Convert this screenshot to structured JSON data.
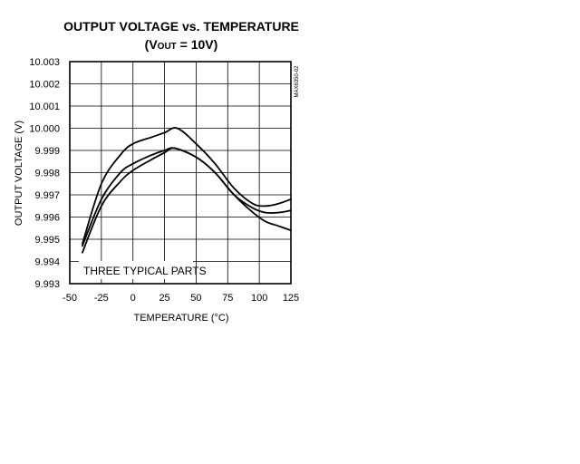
{
  "chart_data": {
    "type": "line",
    "title": "OUTPUT VOLTAGE vs. TEMPERATURE",
    "subtitle_prefix": "(V",
    "subtitle_subscript": "OUT",
    "subtitle_suffix": " = 10V)",
    "xlabel": "TEMPERATURE (°C)",
    "ylabel": "OUTPUT VOLTAGE (V)",
    "xlim": [
      -50,
      125
    ],
    "ylim": [
      9.993,
      10.003
    ],
    "x_ticks": [
      "-50",
      "-25",
      "0",
      "25",
      "50",
      "75",
      "100",
      "125"
    ],
    "y_ticks": [
      "9.993",
      "9.994",
      "9.995",
      "9.996",
      "9.997",
      "9.998",
      "9.999",
      "10.000",
      "10.001",
      "10.002",
      "10.003"
    ],
    "grid": true,
    "annotation": "THREE TYPICAL PARTS",
    "side_code": "MAX6350-02",
    "series": [
      {
        "x": [
          -40,
          -25,
          -10,
          0,
          15,
          25,
          35,
          50,
          65,
          80,
          95,
          105,
          115,
          125
        ],
        "y": [
          9.9948,
          9.9975,
          9.9988,
          9.9993,
          9.9996,
          9.9998,
          10.0,
          9.9993,
          9.9984,
          9.9973,
          9.9966,
          9.9965,
          9.9966,
          9.9968
        ]
      },
      {
        "x": [
          -40,
          -25,
          -10,
          0,
          15,
          25,
          33,
          50,
          65,
          80,
          95,
          105,
          115,
          125
        ],
        "y": [
          9.9947,
          9.9968,
          9.998,
          9.9984,
          9.9988,
          9.999,
          9.9991,
          9.9987,
          9.998,
          9.997,
          9.9964,
          9.9962,
          9.9962,
          9.9963
        ]
      },
      {
        "x": [
          -40,
          -25,
          -10,
          0,
          15,
          25,
          33,
          50,
          65,
          80,
          95,
          105,
          115,
          125
        ],
        "y": [
          9.9944,
          9.9965,
          9.9976,
          9.9981,
          9.9986,
          9.9989,
          9.9991,
          9.9987,
          9.998,
          9.997,
          9.9962,
          9.9958,
          9.9956,
          9.9954
        ]
      }
    ]
  }
}
